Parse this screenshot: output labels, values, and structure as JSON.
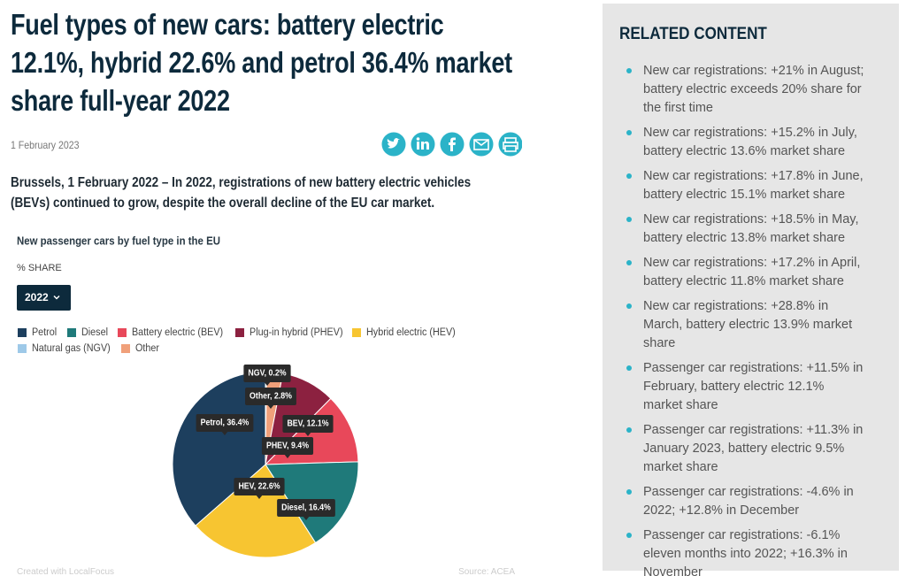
{
  "title": "Fuel types of new cars: battery electric 12.1%, hybrid 22.6% and petrol 36.4% market share full-year 2022",
  "date": "1 February 2023",
  "lead": "Brussels, 1 February 2022 – In 2022, registrations of new battery electric vehicles (BEVs) continued to grow, despite the overall decline of the EU car market.",
  "chart_data": {
    "type": "pie",
    "title": "New passenger cars by fuel type in the EU",
    "subtitle": "% SHARE",
    "selector": "2022",
    "categories": [
      "Petrol",
      "Diesel",
      "Battery electric (BEV)",
      "Plug-in hybrid (PHEV)",
      "Hybrid electric (HEV)",
      "Natural gas (NGV)",
      "Other"
    ],
    "values": [
      36.4,
      16.4,
      12.1,
      9.4,
      22.6,
      0.2,
      2.8
    ],
    "value_labels": [
      "Petrol, 36.4%",
      "Diesel, 16.4%",
      "BEV, 12.1%",
      "PHEV, 9.4%",
      "HEV, 22.6%",
      "NGV, 0.2%",
      "Other, 2.8%"
    ],
    "colors": [
      "#1d3f5e",
      "#1f7a7a",
      "#e8485a",
      "#8c2140",
      "#f7c531",
      "#9ec9e8",
      "#f0a07a"
    ],
    "credit": "Created with LocalFocus",
    "source": "Source: ACEA"
  },
  "sidebar": {
    "title": "RELATED CONTENT",
    "items": [
      "New car registrations: +21% in August; battery electric exceeds 20% share for the first time",
      "New car registrations: +15.2% in July, battery electric 13.6% market share",
      "New car registrations: +17.8% in June, battery electric 15.1% market share",
      "New car registrations: +18.5% in May, battery electric 13.8% market share",
      "New car registrations: +17.2% in April, battery electric 11.8% market share",
      "New car registrations: +28.8% in March, battery electric 13.9% market share",
      "Passenger car registrations: +11.5% in February, battery electric 12.1% market share",
      "Passenger car registrations: +11.3% in January 2023, battery electric 9.5% market share",
      "Passenger car registrations: -4.6% in 2022; +12.8% in December",
      "Passenger car registrations: -6.1% eleven months into 2022; +16.3% in November"
    ]
  }
}
